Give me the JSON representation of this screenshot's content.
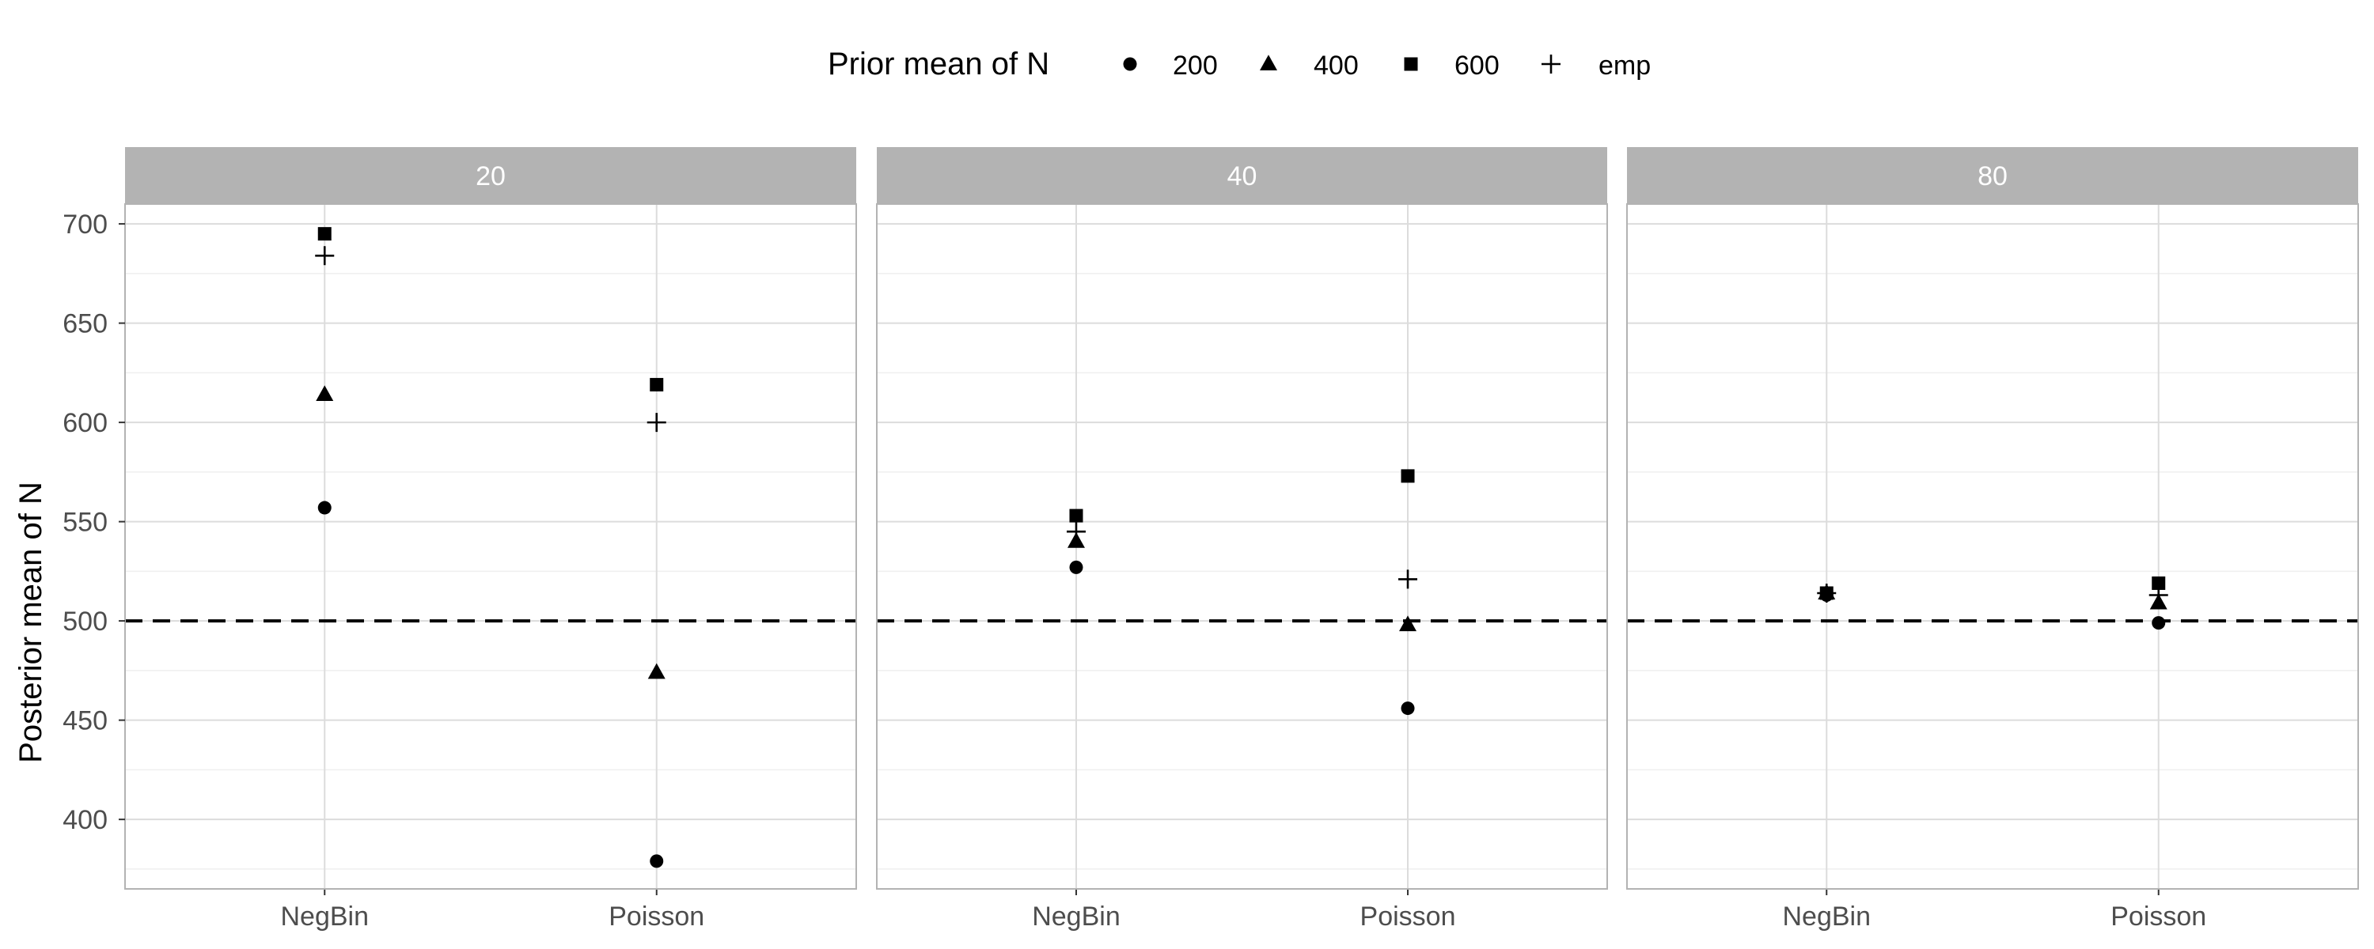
{
  "chart_data": {
    "type": "scatter",
    "title": "",
    "xlabel": "",
    "ylabel": "Posterior mean of N",
    "ylim": [
      365,
      710
    ],
    "y_ticks": [
      400,
      450,
      500,
      550,
      600,
      650,
      700
    ],
    "reference_line": {
      "y": 500,
      "style": "dashed",
      "color": "#000000"
    },
    "categories": [
      "NegBin",
      "Poisson"
    ],
    "legend": {
      "title": "Prior mean of N",
      "position": "top",
      "entries": [
        {
          "label": "200",
          "shape": "circle"
        },
        {
          "label": "400",
          "shape": "triangle"
        },
        {
          "label": "600",
          "shape": "square"
        },
        {
          "label": "emp",
          "shape": "plus"
        }
      ]
    },
    "panels": [
      {
        "strip": "20",
        "points": {
          "NegBin": {
            "200": 557,
            "400": 614,
            "600": 695,
            "emp": 684
          },
          "Poisson": {
            "200": 379,
            "400": 474,
            "600": 619,
            "emp": 600
          }
        }
      },
      {
        "strip": "40",
        "points": {
          "NegBin": {
            "200": 527,
            "400": 540,
            "600": 553,
            "emp": 545
          },
          "Poisson": {
            "200": 456,
            "400": 498,
            "600": 573,
            "emp": 521
          }
        }
      },
      {
        "strip": "80",
        "points": {
          "NegBin": {
            "200": 513,
            "400": 514,
            "600": 514,
            "emp": 514
          },
          "Poisson": {
            "200": 499,
            "400": 509,
            "600": 519,
            "emp": 513
          }
        }
      }
    ],
    "colors": {
      "strip_bg": "#b3b3b3",
      "strip_text": "#ffffff",
      "grid_major": "#dcdcdc",
      "grid_minor": "#efefef",
      "panel_border": "#b3b3b3",
      "points": "#000000"
    }
  }
}
